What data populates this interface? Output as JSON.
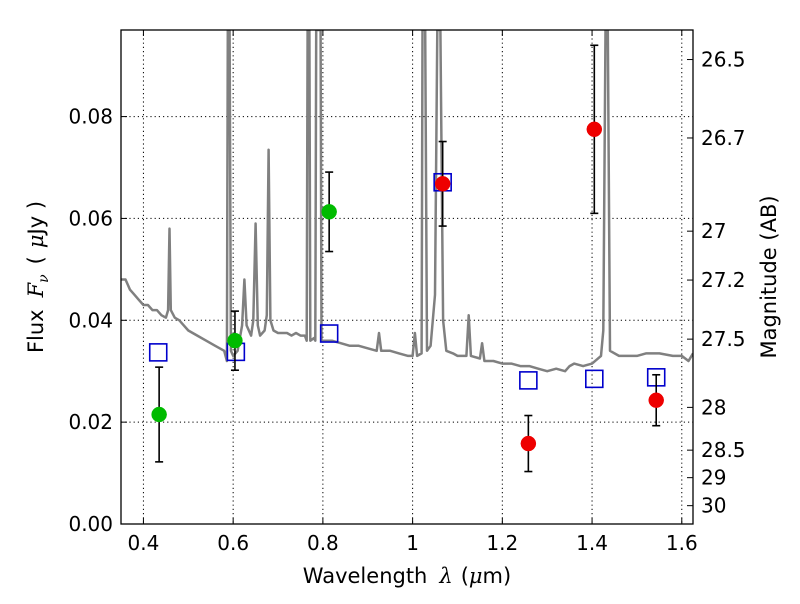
{
  "chart_data": {
    "type": "scatter",
    "xlabel": {
      "text": "Wavelength",
      "symbol": "λ",
      "unit_open": "(",
      "unit_mu": "μ",
      "unit_rest": "m)"
    },
    "ylabel": {
      "text": "Flux",
      "symbol": "F",
      "subscript": "ν",
      "unit_open": "(",
      "unit_mu": "μ",
      "unit_rest": "Jy )"
    },
    "y2label": "Magnitude (AB)",
    "xlim": [
      0.35,
      1.625
    ],
    "ylim": [
      0.0,
      0.097
    ],
    "grid": true,
    "x_ticks": [
      0.4,
      0.6,
      0.8,
      1.0,
      1.2,
      1.4,
      1.6
    ],
    "x_tick_labels": [
      "0.4",
      "0.6",
      "0.8",
      "1",
      "1.2",
      "1.4",
      "1.6"
    ],
    "y_ticks": [
      0.0,
      0.02,
      0.04,
      0.06,
      0.08
    ],
    "y_tick_labels": [
      "0.00",
      "0.02",
      "0.04",
      "0.06",
      "0.08"
    ],
    "y2_ticks": [
      {
        "label": "26.5",
        "flux": 0.0912
      },
      {
        "label": "26.7",
        "flux": 0.0758
      },
      {
        "label": "27",
        "flux": 0.0575
      },
      {
        "label": "27.2",
        "flux": 0.0479
      },
      {
        "label": "27.5",
        "flux": 0.0363
      },
      {
        "label": "28",
        "flux": 0.0229
      },
      {
        "label": "28.5",
        "flux": 0.0145
      },
      {
        "label": "29",
        "flux": 0.0091
      },
      {
        "label": "30",
        "flux": 0.0036
      }
    ],
    "series": [
      {
        "kind": "line",
        "color": "#808080",
        "points": [
          [
            0.35,
            0.048
          ],
          [
            0.36,
            0.048
          ],
          [
            0.37,
            0.046
          ],
          [
            0.38,
            0.045
          ],
          [
            0.39,
            0.044
          ],
          [
            0.4,
            0.043
          ],
          [
            0.41,
            0.043
          ],
          [
            0.42,
            0.042
          ],
          [
            0.43,
            0.042
          ],
          [
            0.44,
            0.041
          ],
          [
            0.45,
            0.0405
          ],
          [
            0.455,
            0.042
          ],
          [
            0.458,
            0.058
          ],
          [
            0.461,
            0.042
          ],
          [
            0.47,
            0.0405
          ],
          [
            0.48,
            0.04
          ],
          [
            0.49,
            0.039
          ],
          [
            0.5,
            0.038
          ],
          [
            0.52,
            0.037
          ],
          [
            0.54,
            0.036
          ],
          [
            0.56,
            0.035
          ],
          [
            0.58,
            0.034
          ],
          [
            0.586,
            0.032
          ],
          [
            0.588,
            0.097
          ],
          [
            0.592,
            0.097
          ],
          [
            0.595,
            0.034
          ],
          [
            0.6,
            0.033
          ],
          [
            0.61,
            0.034
          ],
          [
            0.62,
            0.039
          ],
          [
            0.625,
            0.048
          ],
          [
            0.63,
            0.039
          ],
          [
            0.64,
            0.037
          ],
          [
            0.645,
            0.04
          ],
          [
            0.65,
            0.059
          ],
          [
            0.655,
            0.039
          ],
          [
            0.66,
            0.037
          ],
          [
            0.67,
            0.038
          ],
          [
            0.675,
            0.041
          ],
          [
            0.679,
            0.0735
          ],
          [
            0.683,
            0.04
          ],
          [
            0.69,
            0.038
          ],
          [
            0.7,
            0.0375
          ],
          [
            0.72,
            0.0375
          ],
          [
            0.73,
            0.037
          ],
          [
            0.74,
            0.0375
          ],
          [
            0.75,
            0.037
          ],
          [
            0.76,
            0.037
          ],
          [
            0.764,
            0.036
          ],
          [
            0.766,
            0.097
          ],
          [
            0.77,
            0.097
          ],
          [
            0.772,
            0.036
          ],
          [
            0.78,
            0.0365
          ],
          [
            0.783,
            0.036
          ],
          [
            0.785,
            0.097
          ],
          [
            0.795,
            0.097
          ],
          [
            0.797,
            0.036
          ],
          [
            0.8,
            0.036
          ],
          [
            0.82,
            0.036
          ],
          [
            0.84,
            0.0355
          ],
          [
            0.86,
            0.035
          ],
          [
            0.88,
            0.035
          ],
          [
            0.9,
            0.0345
          ],
          [
            0.92,
            0.034
          ],
          [
            0.925,
            0.0375
          ],
          [
            0.93,
            0.034
          ],
          [
            0.95,
            0.034
          ],
          [
            0.97,
            0.0335
          ],
          [
            0.99,
            0.033
          ],
          [
            1.0,
            0.033
          ],
          [
            1.005,
            0.0375
          ],
          [
            1.01,
            0.033
          ],
          [
            1.02,
            0.0335
          ],
          [
            1.022,
            0.097
          ],
          [
            1.028,
            0.097
          ],
          [
            1.032,
            0.034
          ],
          [
            1.04,
            0.035
          ],
          [
            1.05,
            0.045
          ],
          [
            1.055,
            0.097
          ],
          [
            1.062,
            0.097
          ],
          [
            1.068,
            0.04
          ],
          [
            1.075,
            0.034
          ],
          [
            1.09,
            0.0335
          ],
          [
            1.1,
            0.033
          ],
          [
            1.12,
            0.033
          ],
          [
            1.125,
            0.041
          ],
          [
            1.13,
            0.033
          ],
          [
            1.15,
            0.0325
          ],
          [
            1.155,
            0.0355
          ],
          [
            1.16,
            0.032
          ],
          [
            1.18,
            0.032
          ],
          [
            1.2,
            0.0315
          ],
          [
            1.22,
            0.0315
          ],
          [
            1.24,
            0.031
          ],
          [
            1.26,
            0.031
          ],
          [
            1.28,
            0.0305
          ],
          [
            1.3,
            0.03
          ],
          [
            1.32,
            0.0305
          ],
          [
            1.34,
            0.03
          ],
          [
            1.35,
            0.031
          ],
          [
            1.36,
            0.0315
          ],
          [
            1.38,
            0.031
          ],
          [
            1.4,
            0.0315
          ],
          [
            1.42,
            0.033
          ],
          [
            1.425,
            0.038
          ],
          [
            1.43,
            0.097
          ],
          [
            1.435,
            0.097
          ],
          [
            1.44,
            0.034
          ],
          [
            1.46,
            0.033
          ],
          [
            1.48,
            0.033
          ],
          [
            1.5,
            0.033
          ],
          [
            1.52,
            0.0335
          ],
          [
            1.55,
            0.0335
          ],
          [
            1.58,
            0.033
          ],
          [
            1.6,
            0.033
          ],
          [
            1.615,
            0.032
          ],
          [
            1.625,
            0.0335
          ]
        ]
      },
      {
        "kind": "markers",
        "marker": "square",
        "color": "#0000cc",
        "points": [
          [
            0.433,
            0.0337
          ],
          [
            0.606,
            0.0338
          ],
          [
            0.814,
            0.0374
          ],
          [
            1.067,
            0.0671
          ],
          [
            1.258,
            0.0282
          ],
          [
            1.405,
            0.0285
          ],
          [
            1.543,
            0.0288
          ]
        ]
      },
      {
        "kind": "markers",
        "marker": "circle",
        "color": "#00bb00",
        "errorbars": true,
        "points": [
          [
            0.435,
            0.0215,
            0.0093
          ],
          [
            0.604,
            0.036,
            0.0058
          ],
          [
            0.814,
            0.0613,
            0.0078
          ]
        ]
      },
      {
        "kind": "markers",
        "marker": "circle",
        "color": "#ee0000",
        "errorbars": true,
        "points": [
          [
            1.067,
            0.0668,
            0.0083
          ],
          [
            1.258,
            0.0158,
            0.0055
          ],
          [
            1.405,
            0.0775,
            0.0165
          ],
          [
            1.543,
            0.0243,
            0.005
          ]
        ]
      }
    ]
  }
}
